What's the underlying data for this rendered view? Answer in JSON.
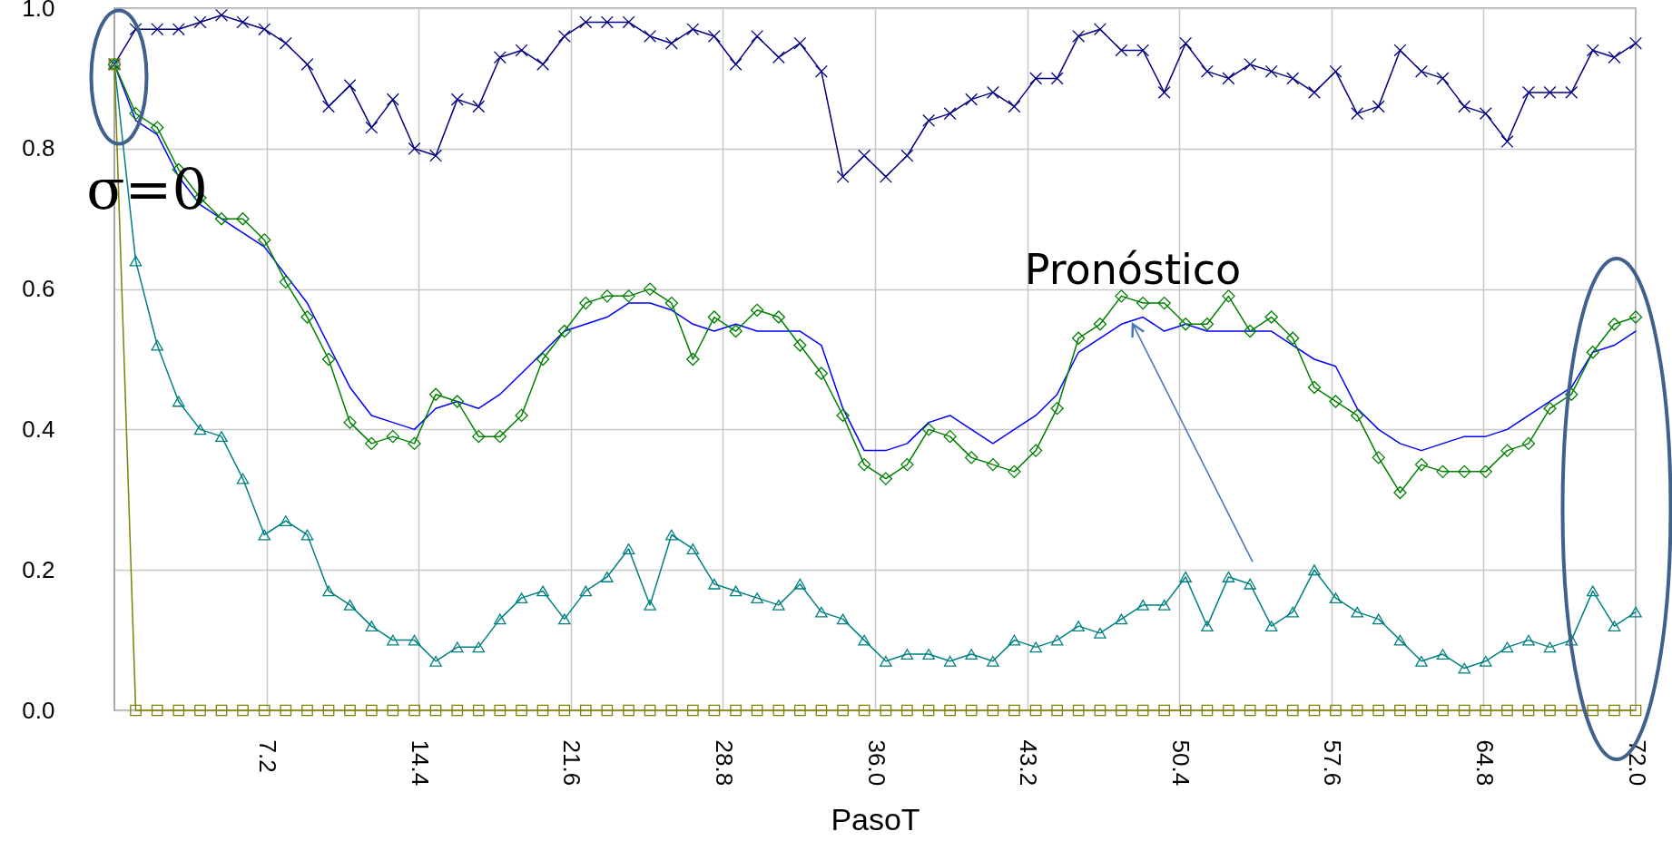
{
  "chart_data": {
    "type": "line",
    "xlabel": "PasoT",
    "x": [
      0,
      1.01,
      2.03,
      3.04,
      4.06,
      5.07,
      6.08,
      7.1,
      8.11,
      9.13,
      10.14,
      11.15,
      12.17,
      13.18,
      14.2,
      15.21,
      16.23,
      17.24,
      18.25,
      19.27,
      20.28,
      21.3,
      22.31,
      23.32,
      24.34,
      25.35,
      26.37,
      27.38,
      28.39,
      29.41,
      30.42,
      31.44,
      32.45,
      33.46,
      34.48,
      35.49,
      36.51,
      37.52,
      38.54,
      39.55,
      40.56,
      41.58,
      42.59,
      43.61,
      44.62,
      45.63,
      46.65,
      47.66,
      48.68,
      49.69,
      50.7,
      51.72,
      52.73,
      53.75,
      54.76,
      55.77,
      56.79,
      57.8,
      58.82,
      59.83,
      60.85,
      61.86,
      62.87,
      63.89,
      64.9,
      65.92,
      66.93,
      67.94,
      68.96,
      69.97,
      70.99,
      72
    ],
    "xlim": [
      0,
      72
    ],
    "xticks": [
      7.2,
      14.4,
      21.6,
      28.8,
      {
        "value": 36,
        "label": "36.0"
      },
      43.2,
      50.4,
      57.6,
      64.8,
      {
        "value": 72,
        "label": "72.0"
      }
    ],
    "ylim": [
      0,
      1
    ],
    "yticks": [
      {
        "value": 0,
        "label": "0.0"
      },
      0.2,
      0.4,
      0.6,
      0.8,
      {
        "value": 1,
        "label": "1.0"
      }
    ],
    "grid": true,
    "series": [
      {
        "color": "#000080",
        "marker": "cross",
        "values": [
          0.92,
          0.97,
          0.97,
          0.97,
          0.98,
          0.99,
          0.98,
          0.97,
          0.95,
          0.92,
          0.86,
          0.89,
          0.83,
          0.87,
          0.8,
          0.79,
          0.87,
          0.86,
          0.93,
          0.94,
          0.92,
          0.96,
          0.98,
          0.98,
          0.98,
          0.96,
          0.95,
          0.97,
          0.96,
          0.92,
          0.96,
          0.93,
          0.95,
          0.91,
          0.76,
          0.79,
          0.76,
          0.79,
          0.84,
          0.85,
          0.87,
          0.88,
          0.86,
          0.9,
          0.9,
          0.96,
          0.97,
          0.94,
          0.94,
          0.88,
          0.95,
          0.91,
          0.9,
          0.92,
          0.91,
          0.9,
          0.88,
          0.91,
          0.85,
          0.86,
          0.94,
          0.91,
          0.9,
          0.86,
          0.85,
          0.81,
          0.88,
          0.88,
          0.88,
          0.94,
          0.93,
          0.95
        ]
      },
      {
        "color": "#0000ff",
        "marker": "none",
        "values": [
          0.92,
          0.84,
          0.82,
          0.76,
          0.72,
          0.7,
          0.68,
          0.66,
          0.62,
          0.58,
          0.52,
          0.46,
          0.42,
          0.41,
          0.4,
          0.43,
          0.44,
          0.43,
          0.45,
          0.48,
          0.51,
          0.54,
          0.55,
          0.56,
          0.58,
          0.58,
          0.57,
          0.55,
          0.54,
          0.55,
          0.54,
          0.54,
          0.54,
          0.52,
          0.43,
          0.37,
          0.37,
          0.38,
          0.41,
          0.42,
          0.4,
          0.38,
          0.4,
          0.42,
          0.45,
          0.51,
          0.53,
          0.55,
          0.56,
          0.54,
          0.55,
          0.54,
          0.54,
          0.54,
          0.54,
          0.52,
          0.5,
          0.49,
          0.43,
          0.4,
          0.38,
          0.37,
          0.38,
          0.39,
          0.39,
          0.4,
          0.42,
          0.44,
          0.46,
          0.51,
          0.52,
          0.54
        ]
      },
      {
        "color": "#008000",
        "marker": "diamond",
        "values": [
          0.92,
          0.85,
          0.83,
          0.77,
          0.73,
          0.7,
          0.7,
          0.67,
          0.61,
          0.56,
          0.5,
          0.41,
          0.38,
          0.39,
          0.38,
          0.45,
          0.44,
          0.39,
          0.39,
          0.42,
          0.5,
          0.54,
          0.58,
          0.59,
          0.59,
          0.6,
          0.58,
          0.5,
          0.56,
          0.54,
          0.57,
          0.56,
          0.52,
          0.48,
          0.42,
          0.35,
          0.33,
          0.35,
          0.4,
          0.39,
          0.36,
          0.35,
          0.34,
          0.37,
          0.43,
          0.53,
          0.55,
          0.59,
          0.58,
          0.58,
          0.55,
          0.55,
          0.59,
          0.54,
          0.56,
          0.53,
          0.46,
          0.44,
          0.42,
          0.36,
          0.31,
          0.35,
          0.34,
          0.34,
          0.34,
          0.37,
          0.38,
          0.43,
          0.45,
          0.51,
          0.55,
          0.56
        ]
      },
      {
        "color": "#008080",
        "marker": "triangle",
        "values": [
          0.92,
          0.64,
          0.52,
          0.44,
          0.4,
          0.39,
          0.33,
          0.25,
          0.27,
          0.25,
          0.17,
          0.15,
          0.12,
          0.1,
          0.1,
          0.07,
          0.09,
          0.09,
          0.13,
          0.16,
          0.17,
          0.13,
          0.17,
          0.19,
          0.23,
          0.15,
          0.25,
          0.23,
          0.18,
          0.17,
          0.16,
          0.15,
          0.18,
          0.14,
          0.13,
          0.1,
          0.07,
          0.08,
          0.08,
          0.07,
          0.08,
          0.07,
          0.1,
          0.09,
          0.1,
          0.12,
          0.11,
          0.13,
          0.15,
          0.15,
          0.19,
          0.12,
          0.19,
          0.18,
          0.12,
          0.14,
          0.2,
          0.16,
          0.14,
          0.13,
          0.1,
          0.07,
          0.08,
          0.06,
          0.07,
          0.09,
          0.1,
          0.09,
          0.1,
          0.17,
          0.12,
          0.14
        ]
      },
      {
        "color": "#808000",
        "marker": "square",
        "values": [
          0.92,
          0,
          0,
          0,
          0,
          0,
          0,
          0,
          0,
          0,
          0,
          0,
          0,
          0,
          0,
          0,
          0,
          0,
          0,
          0,
          0,
          0,
          0,
          0,
          0,
          0,
          0,
          0,
          0,
          0,
          0,
          0,
          0,
          0,
          0,
          0,
          0,
          0,
          0,
          0,
          0,
          0,
          0,
          0,
          0,
          0,
          0,
          0,
          0,
          0,
          0,
          0,
          0,
          0,
          0,
          0,
          0,
          0,
          0,
          0,
          0,
          0,
          0,
          0,
          0,
          0,
          0,
          0,
          0,
          0,
          0,
          0
        ]
      }
    ],
    "annotations": [
      {
        "text": "σ=0",
        "x": 0,
        "y": 0.92
      },
      {
        "text": "Pronóstico",
        "x": 48.2,
        "y": 0.55
      }
    ]
  }
}
